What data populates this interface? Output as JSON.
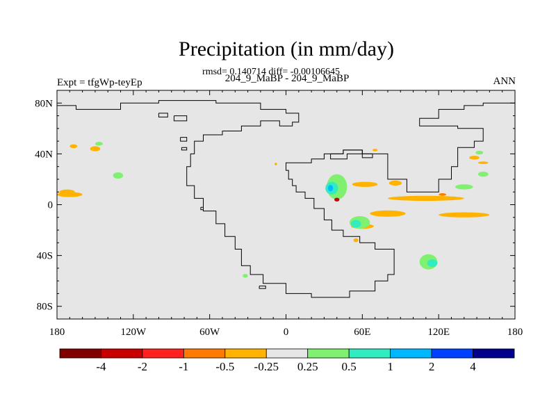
{
  "chart_data": {
    "type": "heatmap",
    "title": "Precipitation (in mm/day)",
    "stats_line": "rmsd= 0.140714 diff= -0.00106645",
    "subtitle": "204_9_MaBP - 204_9_MaBP",
    "left_label": "Expt = tfgWp-teyEp",
    "right_label": "ANN",
    "x_ticks": [
      {
        "v": -180,
        "label": "180"
      },
      {
        "v": -120,
        "label": "120W"
      },
      {
        "v": -60,
        "label": "60W"
      },
      {
        "v": 0,
        "label": "0"
      },
      {
        "v": 60,
        "label": "60E"
      },
      {
        "v": 120,
        "label": "120E"
      },
      {
        "v": 180,
        "label": "180"
      }
    ],
    "y_ticks": [
      {
        "v": 80,
        "label": "80N"
      },
      {
        "v": 40,
        "label": "40N"
      },
      {
        "v": 0,
        "label": "0"
      },
      {
        "v": -40,
        "label": "40S"
      },
      {
        "v": -80,
        "label": "80S"
      }
    ],
    "xlim": [
      -180,
      180
    ],
    "ylim": [
      -90,
      90
    ],
    "background_color": "#e6e6e6",
    "colorbar": {
      "colors": [
        "#800000",
        "#c80000",
        "#ff2020",
        "#ff7a00",
        "#ffb300",
        "#e6e6e6",
        "#80f070",
        "#30ecc0",
        "#00b8ff",
        "#0040ff",
        "#00008a"
      ],
      "labels": [
        "-4",
        "-2",
        "-1",
        "-0.5",
        "-0.25",
        "0.25",
        "0.5",
        "1",
        "2",
        "4"
      ]
    },
    "anomaly_regions": [
      {
        "level": "-0.25",
        "color": "#ffb300",
        "lon": -170,
        "lat": 8,
        "rx": 10,
        "ry": 2
      },
      {
        "level": "-0.25",
        "color": "#ffb300",
        "lon": -172,
        "lat": 10,
        "rx": 6,
        "ry": 2
      },
      {
        "level": "-0.25",
        "color": "#ffb300",
        "lon": -150,
        "lat": 44,
        "rx": 4,
        "ry": 2
      },
      {
        "level": "-0.25",
        "color": "#ffb300",
        "lon": -167,
        "lat": 46,
        "rx": 3,
        "ry": 1.5
      },
      {
        "level": "0.25",
        "color": "#80f070",
        "lon": -132,
        "lat": 23,
        "rx": 4,
        "ry": 2.5
      },
      {
        "level": "0.25",
        "color": "#80f070",
        "lon": -147,
        "lat": 48,
        "rx": 3,
        "ry": 1.5
      },
      {
        "level": "0.25",
        "color": "#80f070",
        "lon": -32,
        "lat": -56,
        "rx": 2,
        "ry": 1.5
      },
      {
        "level": "0.25",
        "color": "#80f070",
        "lon": 40,
        "lat": 14,
        "rx": 8,
        "ry": 10
      },
      {
        "level": "0.5",
        "color": "#30ecc0",
        "lon": 36,
        "lat": 13,
        "rx": 5,
        "ry": 5
      },
      {
        "level": "1",
        "color": "#00b8ff",
        "lon": 35,
        "lat": 13,
        "rx": 2,
        "ry": 2.5
      },
      {
        "level": "-2",
        "color": "#c80000",
        "lon": 40,
        "lat": 4,
        "rx": 2,
        "ry": 1.5
      },
      {
        "level": "-0.25",
        "color": "#ffb300",
        "lon": 62,
        "lat": 16,
        "rx": 10,
        "ry": 2
      },
      {
        "level": "-0.25",
        "color": "#ffb300",
        "lon": 86,
        "lat": 17,
        "rx": 5,
        "ry": 2
      },
      {
        "level": "-0.25",
        "color": "#ffb300",
        "lon": 110,
        "lat": 5,
        "rx": 30,
        "ry": 2
      },
      {
        "level": "-0.25",
        "color": "#ffb300",
        "lon": 80,
        "lat": -7,
        "rx": 14,
        "ry": 2.5
      },
      {
        "level": "-0.25",
        "color": "#ffb300",
        "lon": 60,
        "lat": -17,
        "rx": 9,
        "ry": 2
      },
      {
        "level": "-0.25",
        "color": "#ffb300",
        "lon": 140,
        "lat": -8,
        "rx": 20,
        "ry": 2
      },
      {
        "level": "-0.25",
        "color": "#ffb300",
        "lon": 55,
        "lat": -28,
        "rx": 2,
        "ry": 1.5
      },
      {
        "level": "-0.25",
        "color": "#ffb300",
        "lon": 148,
        "lat": 37,
        "rx": 4,
        "ry": 1.5
      },
      {
        "level": "-0.25",
        "color": "#ffb300",
        "lon": 70,
        "lat": 43,
        "rx": 2,
        "ry": 1
      },
      {
        "level": "-0.25",
        "color": "#ffb300",
        "lon": -8,
        "lat": 32,
        "rx": 1,
        "ry": 1
      },
      {
        "level": "-0.25",
        "color": "#ffb300",
        "lon": 155,
        "lat": 33,
        "rx": 4,
        "ry": 1
      },
      {
        "level": "-0.5",
        "color": "#ff7a00",
        "lon": 123,
        "lat": 8,
        "rx": 3,
        "ry": 1
      },
      {
        "level": "0.25",
        "color": "#80f070",
        "lon": 140,
        "lat": 14,
        "rx": 7,
        "ry": 2
      },
      {
        "level": "0.25",
        "color": "#80f070",
        "lon": 155,
        "lat": 24,
        "rx": 4,
        "ry": 2
      },
      {
        "level": "0.25",
        "color": "#80f070",
        "lon": 152,
        "lat": 41,
        "rx": 3,
        "ry": 1.5
      },
      {
        "level": "0.25",
        "color": "#80f070",
        "lon": 58,
        "lat": -14,
        "rx": 8,
        "ry": 5
      },
      {
        "level": "0.5",
        "color": "#30ecc0",
        "lon": 55,
        "lat": -15,
        "rx": 4,
        "ry": 3
      },
      {
        "level": "0.25",
        "color": "#80f070",
        "lon": 112,
        "lat": -45,
        "rx": 7,
        "ry": 6
      },
      {
        "level": "0.5",
        "color": "#30ecc0",
        "lon": 115,
        "lat": -46,
        "rx": 4,
        "ry": 3
      }
    ],
    "coastlines": [
      {
        "name": "northern-coast",
        "points": [
          [
            -180,
            78
          ],
          [
            -165,
            78
          ],
          [
            -165,
            75
          ],
          [
            -130,
            75
          ],
          [
            -130,
            80
          ],
          [
            -100,
            80
          ],
          [
            -100,
            82
          ],
          [
            -55,
            82
          ],
          [
            -55,
            80
          ],
          [
            -20,
            80
          ],
          [
            -20,
            75
          ],
          [
            0,
            75
          ],
          [
            0,
            72
          ],
          [
            10,
            72
          ],
          [
            10,
            65
          ],
          [
            5,
            65
          ],
          [
            5,
            62
          ],
          [
            -5,
            62
          ],
          [
            -5,
            66
          ],
          [
            -20,
            66
          ],
          [
            -20,
            62
          ],
          [
            -35,
            62
          ],
          [
            -35,
            58
          ],
          [
            -50,
            58
          ],
          [
            -50,
            55
          ],
          [
            -65,
            55
          ],
          [
            -65,
            50
          ],
          [
            -72,
            50
          ],
          [
            -72,
            40
          ],
          [
            -75,
            40
          ],
          [
            -75,
            30
          ],
          [
            -78,
            30
          ],
          [
            -78,
            15
          ],
          [
            -72,
            15
          ],
          [
            -72,
            5
          ],
          [
            -65,
            5
          ],
          [
            -65,
            -5
          ],
          [
            -55,
            -5
          ],
          [
            -55,
            -15
          ],
          [
            -48,
            -15
          ],
          [
            -48,
            -25
          ],
          [
            -40,
            -25
          ],
          [
            -40,
            -35
          ],
          [
            -35,
            -35
          ],
          [
            -35,
            -48
          ],
          [
            -28,
            -48
          ],
          [
            -28,
            -55
          ],
          [
            -18,
            -55
          ],
          [
            -18,
            -62
          ],
          [
            0,
            -62
          ],
          [
            0,
            -70
          ],
          [
            20,
            -70
          ],
          [
            20,
            -73
          ],
          [
            50,
            -73
          ],
          [
            50,
            -68
          ],
          [
            70,
            -68
          ],
          [
            70,
            -60
          ],
          [
            80,
            -60
          ],
          [
            80,
            -55
          ],
          [
            85,
            -55
          ],
          [
            85,
            -35
          ],
          [
            70,
            -35
          ],
          [
            70,
            -30
          ],
          [
            58,
            -30
          ],
          [
            58,
            -25
          ],
          [
            45,
            -25
          ],
          [
            45,
            -20
          ],
          [
            36,
            -20
          ],
          [
            36,
            -12
          ],
          [
            30,
            -12
          ],
          [
            30,
            -3
          ],
          [
            22,
            -3
          ],
          [
            22,
            5
          ],
          [
            15,
            5
          ],
          [
            15,
            10
          ],
          [
            8,
            10
          ],
          [
            8,
            15
          ],
          [
            5,
            15
          ],
          [
            5,
            20
          ],
          [
            2,
            20
          ],
          [
            2,
            27
          ],
          [
            0,
            27
          ],
          [
            0,
            33
          ],
          [
            20,
            33
          ],
          [
            20,
            36
          ],
          [
            30,
            36
          ],
          [
            30,
            40
          ],
          [
            45,
            40
          ],
          [
            45,
            43
          ],
          [
            60,
            43
          ],
          [
            60,
            40
          ],
          [
            80,
            40
          ],
          [
            80,
            20
          ],
          [
            95,
            20
          ],
          [
            95,
            10
          ],
          [
            120,
            10
          ],
          [
            120,
            20
          ],
          [
            130,
            20
          ],
          [
            130,
            30
          ],
          [
            135,
            30
          ],
          [
            135,
            45
          ],
          [
            148,
            45
          ],
          [
            148,
            50
          ],
          [
            155,
            50
          ],
          [
            155,
            60
          ],
          [
            135,
            60
          ],
          [
            135,
            62
          ],
          [
            105,
            62
          ],
          [
            105,
            68
          ],
          [
            120,
            68
          ],
          [
            120,
            75
          ],
          [
            140,
            75
          ],
          [
            140,
            78
          ],
          [
            155,
            78
          ],
          [
            155,
            80
          ],
          [
            180,
            80
          ]
        ]
      },
      {
        "name": "inland-sea",
        "points": [
          [
            35,
            40
          ],
          [
            35,
            36
          ],
          [
            48,
            36
          ],
          [
            48,
            40
          ],
          [
            60,
            40
          ],
          [
            60,
            37
          ],
          [
            68,
            37
          ],
          [
            68,
            40
          ],
          [
            60,
            40
          ],
          [
            60,
            43
          ],
          [
            45,
            43
          ],
          [
            45,
            40
          ],
          [
            35,
            40
          ]
        ]
      },
      {
        "name": "arctic-island-left",
        "points": [
          [
            -100,
            72
          ],
          [
            -93,
            72
          ],
          [
            -93,
            69
          ],
          [
            -100,
            69
          ],
          [
            -100,
            72
          ]
        ]
      },
      {
        "name": "arctic-island-mid",
        "points": [
          [
            -88,
            70
          ],
          [
            -78,
            70
          ],
          [
            -78,
            66
          ],
          [
            -88,
            66
          ],
          [
            -88,
            70
          ]
        ]
      },
      {
        "name": "sea-island-1",
        "points": [
          [
            -83,
            53
          ],
          [
            -78,
            53
          ],
          [
            -78,
            50
          ],
          [
            -83,
            50
          ],
          [
            -83,
            53
          ]
        ]
      },
      {
        "name": "sea-island-2",
        "points": [
          [
            -82,
            45
          ],
          [
            -78,
            45
          ],
          [
            -78,
            43
          ],
          [
            -82,
            43
          ],
          [
            -82,
            45
          ]
        ]
      },
      {
        "name": "small-island-a",
        "points": [
          [
            -67,
            -2
          ],
          [
            -65,
            -2
          ],
          [
            -65,
            -4
          ],
          [
            -67,
            -4
          ],
          [
            -67,
            -2
          ]
        ]
      },
      {
        "name": "southern-island",
        "points": [
          [
            -21,
            -64
          ],
          [
            -16,
            -64
          ],
          [
            -16,
            -66
          ],
          [
            -21,
            -66
          ],
          [
            -21,
            -64
          ]
        ]
      }
    ]
  }
}
